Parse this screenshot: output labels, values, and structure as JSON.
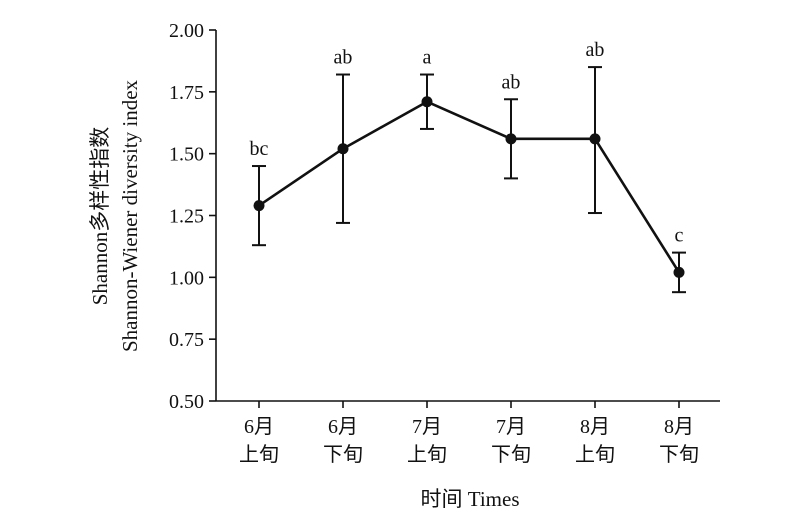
{
  "chart_data": {
    "type": "line",
    "categories": [
      [
        "6月",
        "上旬"
      ],
      [
        "6月",
        "下旬"
      ],
      [
        "7月",
        "上旬"
      ],
      [
        "7月",
        "下旬"
      ],
      [
        "8月",
        "上旬"
      ],
      [
        "8月",
        "下旬"
      ]
    ],
    "values": [
      1.29,
      1.52,
      1.71,
      1.56,
      1.56,
      1.02
    ],
    "error_lower": [
      1.13,
      1.22,
      1.6,
      1.4,
      1.26,
      0.94
    ],
    "error_upper": [
      1.45,
      1.82,
      1.82,
      1.72,
      1.85,
      1.1
    ],
    "annotations": [
      "bc",
      "ab",
      "a",
      "ab",
      "ab",
      "c"
    ],
    "ylim": [
      0.5,
      2.0
    ],
    "yticks": [
      "0.50",
      "0.75",
      "1.00",
      "1.25",
      "1.50",
      "1.75",
      "2.00"
    ],
    "xlabel": "时间 Times",
    "ylabel_lines": [
      "Shannon多样性指数",
      "Shannon-Wiener diversity index"
    ],
    "grid": false,
    "color": "#111111"
  }
}
